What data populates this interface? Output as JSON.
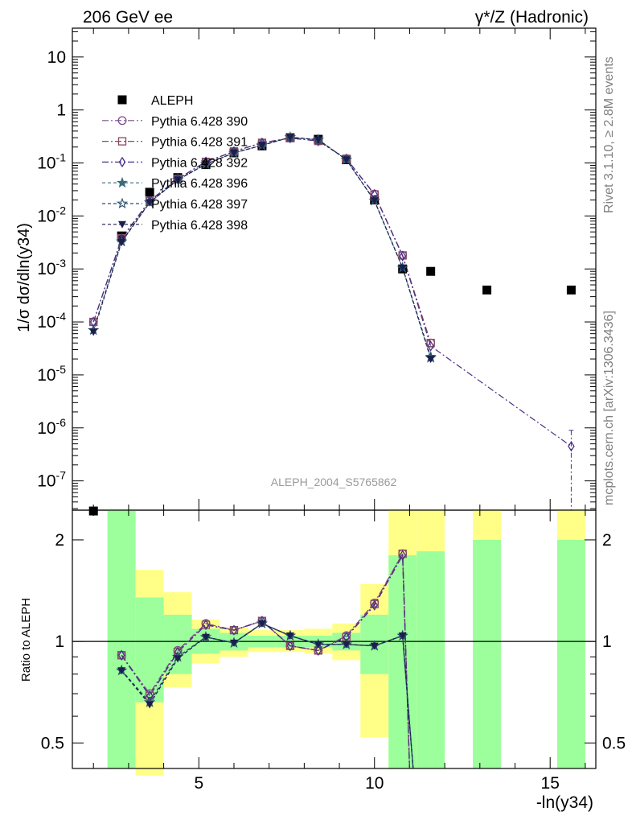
{
  "header": {
    "left_title": "206 GeV ee",
    "right_title": "γ*/Z (Hadronic)"
  },
  "side_text": {
    "rivet": "Rivet 3.1.10, ≥ 2.8M events",
    "mcplots": "mcplots.cern.ch [arXiv:1306.3436]"
  },
  "watermark": "ALEPH_2004_S5765862",
  "chart_data": [
    {
      "type": "scatter",
      "panel": "main",
      "ylabel": "1/σ  dσ/dln(y34)",
      "yscale": "log",
      "ylim": [
        2.8e-08,
        35
      ],
      "xlim": [
        1.4,
        16.3
      ],
      "y_ticks": [
        "10^-7",
        "10^-6",
        "10^-5",
        "10^-4",
        "10^-3",
        "10^-2",
        "10^-1",
        "1",
        "10"
      ],
      "legend_position": "top-left",
      "series": [
        {
          "name": "ALEPH",
          "color": "#000000",
          "marker": "square-filled",
          "points": [
            [
              2.0,
              2.7e-08
            ],
            [
              2.8,
              0.0042
            ],
            [
              3.6,
              0.028
            ],
            [
              4.4,
              0.053
            ],
            [
              5.2,
              0.093
            ],
            [
              6.0,
              0.155
            ],
            [
              6.8,
              0.21
            ],
            [
              7.6,
              0.3
            ],
            [
              8.4,
              0.28
            ],
            [
              9.2,
              0.115
            ],
            [
              10.0,
              0.02
            ],
            [
              10.8,
              0.001
            ],
            [
              11.6,
              0.0009
            ],
            [
              13.2,
              0.0004
            ],
            [
              15.6,
              0.0004
            ]
          ]
        },
        {
          "name": "Pythia 6.428 390",
          "color": "#7b4b8a",
          "marker": "circle-open",
          "dash": "8,3,2,3",
          "points": [
            [
              2.0,
              0.0001
            ],
            [
              2.8,
              0.0038
            ],
            [
              3.6,
              0.0195
            ],
            [
              4.4,
              0.05
            ],
            [
              5.2,
              0.105
            ],
            [
              6.0,
              0.165
            ],
            [
              6.8,
              0.24
            ],
            [
              7.6,
              0.295
            ],
            [
              8.4,
              0.26
            ],
            [
              9.2,
              0.12
            ],
            [
              10.0,
              0.026
            ],
            [
              10.8,
              0.0018
            ],
            [
              11.6,
              4e-05
            ]
          ]
        },
        {
          "name": "Pythia 6.428 391",
          "color": "#8a4b5c",
          "marker": "square-open",
          "dash": "8,3,2,3",
          "points": [
            [
              2.0,
              0.0001
            ],
            [
              2.8,
              0.0038
            ],
            [
              3.6,
              0.019
            ],
            [
              4.4,
              0.05
            ],
            [
              5.2,
              0.105
            ],
            [
              6.0,
              0.165
            ],
            [
              6.8,
              0.24
            ],
            [
              7.6,
              0.295
            ],
            [
              8.4,
              0.26
            ],
            [
              9.2,
              0.12
            ],
            [
              10.0,
              0.0255
            ],
            [
              10.8,
              0.0018
            ],
            [
              11.6,
              4e-05
            ]
          ]
        },
        {
          "name": "Pythia 6.428 392",
          "color": "#4b2f8a",
          "marker": "diamond-open",
          "dash": "8,3,2,3",
          "points": [
            [
              2.0,
              0.0001
            ],
            [
              2.8,
              0.0037
            ],
            [
              3.6,
              0.019
            ],
            [
              4.4,
              0.05
            ],
            [
              5.2,
              0.105
            ],
            [
              6.0,
              0.165
            ],
            [
              6.8,
              0.24
            ],
            [
              7.6,
              0.295
            ],
            [
              8.4,
              0.26
            ],
            [
              9.2,
              0.12
            ],
            [
              10.0,
              0.0255
            ],
            [
              10.8,
              0.00175
            ],
            [
              11.6,
              3.5e-05
            ],
            [
              15.6,
              4.5e-07
            ]
          ]
        },
        {
          "name": "Pythia 6.428 396",
          "color": "#3a6b7b",
          "marker": "star-filled",
          "dash": "4,3",
          "points": [
            [
              2.0,
              7e-05
            ],
            [
              2.8,
              0.0033
            ],
            [
              3.6,
              0.018
            ],
            [
              4.4,
              0.048
            ],
            [
              5.2,
              0.095
            ],
            [
              6.0,
              0.155
            ],
            [
              6.8,
              0.215
            ],
            [
              7.6,
              0.305
            ],
            [
              8.4,
              0.275
            ],
            [
              9.2,
              0.115
            ],
            [
              10.0,
              0.0195
            ],
            [
              10.8,
              0.00105
            ],
            [
              11.6,
              2.2e-05
            ]
          ]
        },
        {
          "name": "Pythia 6.428 397",
          "color": "#2b4f6b",
          "marker": "star-open",
          "dash": "4,3",
          "points": [
            [
              2.0,
              7e-05
            ],
            [
              2.8,
              0.0033
            ],
            [
              3.6,
              0.018
            ],
            [
              4.4,
              0.048
            ],
            [
              5.2,
              0.095
            ],
            [
              6.0,
              0.155
            ],
            [
              6.8,
              0.215
            ],
            [
              7.6,
              0.305
            ],
            [
              8.4,
              0.275
            ],
            [
              9.2,
              0.115
            ],
            [
              10.0,
              0.0195
            ],
            [
              10.8,
              0.00105
            ],
            [
              11.6,
              2.1e-05
            ]
          ]
        },
        {
          "name": "Pythia 6.428 398",
          "color": "#1b1f4b",
          "marker": "triangle-down-filled",
          "dash": "4,3",
          "points": [
            [
              2.0,
              6.5e-05
            ],
            [
              2.8,
              0.0032
            ],
            [
              3.6,
              0.018
            ],
            [
              4.4,
              0.048
            ],
            [
              5.2,
              0.095
            ],
            [
              6.0,
              0.155
            ],
            [
              6.8,
              0.215
            ],
            [
              7.6,
              0.305
            ],
            [
              8.4,
              0.275
            ],
            [
              9.2,
              0.115
            ],
            [
              10.0,
              0.0195
            ],
            [
              10.8,
              0.00105
            ],
            [
              11.6,
              2e-05
            ]
          ]
        }
      ]
    },
    {
      "type": "scatter",
      "panel": "ratio",
      "ylabel": "Ratio to ALEPH",
      "xlabel": "-ln(y34)",
      "yscale": "log",
      "ylim": [
        0.42,
        2.45
      ],
      "xlim": [
        1.4,
        16.3
      ],
      "x_ticks": [
        5,
        10,
        15
      ],
      "y_ticks": [
        0.5,
        1,
        2
      ],
      "reference_line": 1,
      "bands": [
        {
          "x0": 2.4,
          "x1": 3.2,
          "yellow": [
            0.42,
            2.45
          ],
          "green": [
            0.42,
            2.45
          ]
        },
        {
          "x0": 3.2,
          "x1": 4.0,
          "yellow": [
            0.4,
            1.63
          ],
          "green": [
            0.66,
            1.35
          ]
        },
        {
          "x0": 4.0,
          "x1": 4.8,
          "yellow": [
            0.73,
            1.4
          ],
          "green": [
            0.8,
            1.2
          ]
        },
        {
          "x0": 4.8,
          "x1": 5.6,
          "yellow": [
            0.86,
            1.16
          ],
          "green": [
            0.92,
            1.09
          ]
        },
        {
          "x0": 5.6,
          "x1": 6.4,
          "yellow": [
            0.9,
            1.1
          ],
          "green": [
            0.94,
            1.06
          ]
        },
        {
          "x0": 6.4,
          "x1": 7.2,
          "yellow": [
            0.93,
            1.08
          ],
          "green": [
            0.96,
            1.04
          ]
        },
        {
          "x0": 7.2,
          "x1": 8.0,
          "yellow": [
            0.93,
            1.08
          ],
          "green": [
            0.96,
            1.04
          ]
        },
        {
          "x0": 8.0,
          "x1": 8.8,
          "yellow": [
            0.92,
            1.09
          ],
          "green": [
            0.96,
            1.04
          ]
        },
        {
          "x0": 8.8,
          "x1": 9.6,
          "yellow": [
            0.88,
            1.13
          ],
          "green": [
            0.94,
            1.06
          ]
        },
        {
          "x0": 9.6,
          "x1": 10.4,
          "yellow": [
            0.52,
            1.48
          ],
          "green": [
            0.8,
            1.2
          ]
        },
        {
          "x0": 10.4,
          "x1": 11.2,
          "yellow": [
            0.42,
            2.45
          ],
          "green": [
            0.42,
            1.8
          ]
        },
        {
          "x0": 11.2,
          "x1": 12.0,
          "yellow": [
            0.42,
            2.45
          ],
          "green": [
            0.42,
            1.85
          ]
        },
        {
          "x0": 12.8,
          "x1": 13.6,
          "yellow": [
            0.42,
            2.45
          ],
          "green": [
            0.42,
            2.0
          ]
        },
        {
          "x0": 15.2,
          "x1": 16.0,
          "yellow": [
            0.42,
            2.45
          ],
          "green": [
            0.42,
            2.0
          ]
        }
      ],
      "series": [
        {
          "name": "Pythia 6.428 390",
          "color": "#7b4b8a",
          "marker": "circle-open",
          "dash": "8,3,2,3",
          "points": [
            [
              2.8,
              0.91
            ],
            [
              3.6,
              0.7
            ],
            [
              4.4,
              0.94
            ],
            [
              5.2,
              1.13
            ],
            [
              6.0,
              1.08
            ],
            [
              6.8,
              1.15
            ],
            [
              7.6,
              0.97
            ],
            [
              8.4,
              0.94
            ],
            [
              9.2,
              1.04
            ],
            [
              10.0,
              1.3
            ],
            [
              10.8,
              1.82
            ],
            [
              11.0,
              0.42
            ]
          ]
        },
        {
          "name": "Pythia 6.428 391",
          "color": "#8a4b5c",
          "marker": "square-open",
          "dash": "8,3,2,3",
          "points": [
            [
              2.8,
              0.91
            ],
            [
              3.6,
              0.69
            ],
            [
              4.4,
              0.93
            ],
            [
              5.2,
              1.12
            ],
            [
              6.0,
              1.08
            ],
            [
              6.8,
              1.15
            ],
            [
              7.6,
              0.97
            ],
            [
              8.4,
              0.94
            ],
            [
              9.2,
              1.03
            ],
            [
              10.0,
              1.29
            ],
            [
              10.8,
              1.82
            ],
            [
              11.0,
              0.42
            ]
          ]
        },
        {
          "name": "Pythia 6.428 392",
          "color": "#4b2f8a",
          "marker": "diamond-open",
          "dash": "8,3,2,3",
          "points": [
            [
              2.8,
              0.91
            ],
            [
              3.6,
              0.69
            ],
            [
              4.4,
              0.93
            ],
            [
              5.2,
              1.12
            ],
            [
              6.0,
              1.08
            ],
            [
              6.8,
              1.15
            ],
            [
              7.6,
              0.97
            ],
            [
              8.4,
              0.94
            ],
            [
              9.2,
              1.03
            ],
            [
              10.0,
              1.28
            ],
            [
              10.8,
              1.8
            ],
            [
              11.0,
              0.42
            ]
          ]
        },
        {
          "name": "Pythia 6.428 396",
          "color": "#3a6b7b",
          "marker": "star-filled",
          "dash": "4,3",
          "points": [
            [
              2.8,
              0.82
            ],
            [
              3.6,
              0.66
            ],
            [
              4.4,
              0.9
            ],
            [
              5.2,
              1.03
            ],
            [
              6.0,
              0.99
            ],
            [
              6.8,
              1.13
            ],
            [
              7.6,
              1.04
            ],
            [
              8.4,
              0.98
            ],
            [
              9.2,
              0.98
            ],
            [
              10.0,
              0.97
            ],
            [
              10.8,
              1.04
            ],
            [
              11.1,
              0.42
            ]
          ]
        },
        {
          "name": "Pythia 6.428 397",
          "color": "#2b4f6b",
          "marker": "star-open",
          "dash": "4,3",
          "points": [
            [
              2.8,
              0.82
            ],
            [
              3.6,
              0.66
            ],
            [
              4.4,
              0.9
            ],
            [
              5.2,
              1.03
            ],
            [
              6.0,
              0.99
            ],
            [
              6.8,
              1.13
            ],
            [
              7.6,
              1.04
            ],
            [
              8.4,
              0.98
            ],
            [
              9.2,
              0.98
            ],
            [
              10.0,
              0.97
            ],
            [
              10.8,
              1.04
            ],
            [
              11.1,
              0.42
            ]
          ]
        },
        {
          "name": "Pythia 6.428 398",
          "color": "#1b1f4b",
          "marker": "triangle-down-filled",
          "dash": "4,3",
          "points": [
            [
              2.8,
              0.82
            ],
            [
              3.6,
              0.65
            ],
            [
              4.4,
              0.89
            ],
            [
              5.2,
              1.03
            ],
            [
              6.0,
              0.99
            ],
            [
              6.8,
              1.13
            ],
            [
              7.6,
              1.04
            ],
            [
              8.4,
              0.98
            ],
            [
              9.2,
              0.98
            ],
            [
              10.0,
              0.97
            ],
            [
              10.8,
              1.04
            ],
            [
              11.1,
              0.42
            ]
          ]
        }
      ]
    }
  ]
}
